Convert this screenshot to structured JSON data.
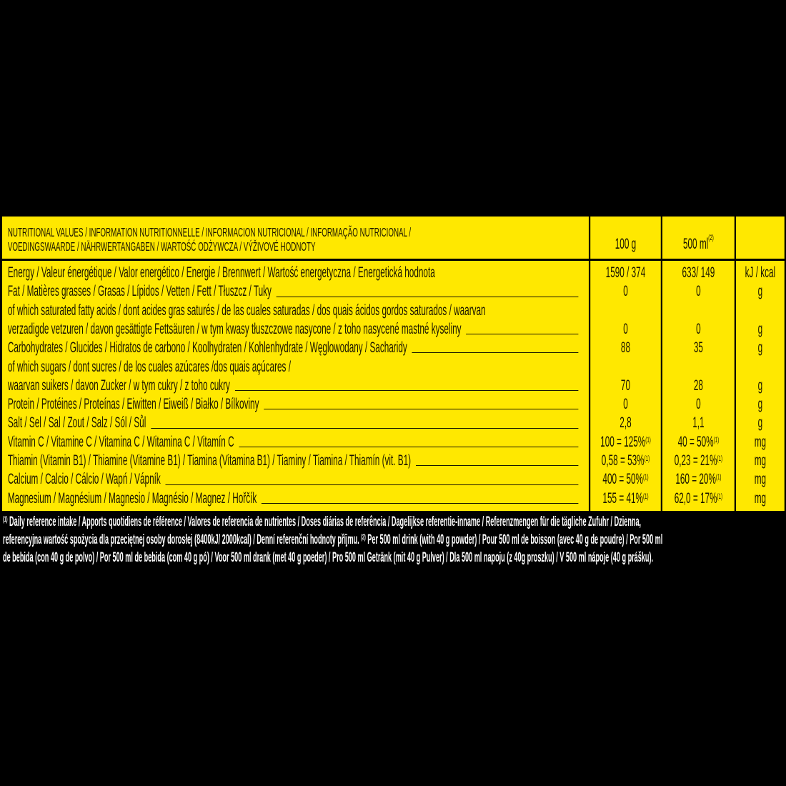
{
  "header": {
    "title_line1": "NUTRITIONAL VALUES / INFORMATION NUTRITIONNELLE / INFORMACION NUTRICIONAL / INFORMAÇÃO NUTRICIONAL /",
    "title_line2": "VOEDINGSWAARDE / NÄHRWERTANGABEN / WARTOŚĆ ODŻYWCZA / VÝŽIVOVÉ HODNOTY",
    "col_100g": "100 g",
    "col_500ml": "500 ml",
    "col_500ml_note": "(2)"
  },
  "rows": [
    {
      "label": "Energy / Valeur énergétique / Valor energético / Energie / Brennwert / Wartość energetyczna / Energetická hodnota",
      "leader": false,
      "v100": "1590 / 374",
      "v100_note": "",
      "v500": "633/ 149",
      "v500_note": "",
      "unit": "kJ / kcal"
    },
    {
      "label": "Fat / Matières grasses / Grasas / Lípidos / Vetten / Fett / Tłuszcz / Tuky",
      "leader": true,
      "v100": "0",
      "v100_note": "",
      "v500": "0",
      "v500_note": "",
      "unit": "g"
    },
    {
      "label": "of which saturated fatty acids / dont acides gras saturés / de las cuales saturadas / dos quais ácidos gordos saturados / waarvan",
      "leader": false,
      "v100": "",
      "v100_note": "",
      "v500": "",
      "v500_note": "",
      "unit": ""
    },
    {
      "label": "verzadigde vetzuren / davon gesättigte Fettsäuren / w tym kwasy tłuszczowe nasycone / z toho nasycené mastné kyseliny",
      "leader": true,
      "v100": "0",
      "v100_note": "",
      "v500": "0",
      "v500_note": "",
      "unit": "g"
    },
    {
      "label": "Carbohydrates / Glucides / Hidratos de carbono / Koolhydraten / Kohlenhydrate / Węglowodany / Sacharidy",
      "leader": true,
      "v100": "88",
      "v100_note": "",
      "v500": "35",
      "v500_note": "",
      "unit": "g"
    },
    {
      "label": "of which sugars / dont sucres / de los cuales azúcares /dos quais açúcares /",
      "leader": false,
      "v100": "",
      "v100_note": "",
      "v500": "",
      "v500_note": "",
      "unit": ""
    },
    {
      "label": "waarvan suikers / davon Zucker  / w tym cukry / z toho cukry",
      "leader": true,
      "v100": "70",
      "v100_note": "",
      "v500": "28",
      "v500_note": "",
      "unit": "g"
    },
    {
      "label": "Protein / Protéines / Proteínas / Eiwitten / Eiweiß / Białko / Bílkoviny",
      "leader": true,
      "v100": "0",
      "v100_note": "",
      "v500": "0",
      "v500_note": "",
      "unit": "g"
    },
    {
      "label": "Salt / Sel / Sal / Zout / Salz / Sól / Sůl",
      "leader": true,
      "v100": "2,8",
      "v100_note": "",
      "v500": "1,1",
      "v500_note": "",
      "unit": "g"
    },
    {
      "label": "Vitamin C / Vitamine C / Vitamina C / Witamina C / Vitamín C",
      "leader": true,
      "v100": "100 = 125%",
      "v100_note": "(1)",
      "v500": "40 = 50%",
      "v500_note": "(1)",
      "unit": "mg"
    },
    {
      "label": "Thiamin (Vitamin B1) / Thiamine (Vitamine B1) / Tiamina (Vitamina B1) / Tiaminy / Tiamina / Thiamín (vit. B1)",
      "leader": true,
      "v100": "0,58 = 53%",
      "v100_note": "(1)",
      "v500": "0,23 = 21%",
      "v500_note": "(1)",
      "unit": "mg"
    },
    {
      "label": "Calcium / Calcio / Cálcio / Wapń / Vápník",
      "leader": true,
      "v100": "400 = 50%",
      "v100_note": "(1)",
      "v500": "160 = 20%",
      "v500_note": "(1)",
      "unit": "mg"
    },
    {
      "label": "Magnesium / Magnésium / Magnesio / Magnésio / Magnez / Hořčík",
      "leader": true,
      "v100": "155 = 41%",
      "v100_note": "(1)",
      "v500": "62,0 = 17%",
      "v500_note": "(1)",
      "unit": "mg"
    }
  ],
  "footnote": {
    "note1_marker": "(1)",
    "line1": "Daily reference intake / Apports quotidiens de référence / Valores de referencia de nutrientes / Doses diárias de referência / Dagelijkse referentie-inname / Referenzmengen für die tägliche Zufuhr / Dzienna,",
    "line2a": "referencyjna wartość spożycia dla przeciętnej osoby dorosłej (8400kJ/ 2000kcal)  / Denní referenční hodnoty příjmu.",
    "note2_marker": "(2)",
    "line2b": "Per 500 ml drink (with 40 g powder) / Pour 500 ml de boisson (avec 40 g de poudre) / Por 500 ml",
    "line3": "de bebida (con 40 g de polvo) / Por 500 ml de bebida (com 40 g pó) / Voor 500 ml drank (met 40 g poeder) / Pro 500 ml Getränk (mit 40 g Pulver) / Dla 500 ml napoju (z 40g proszku) / V 500 ml nápoje (40 g prášku)."
  },
  "colors": {
    "label_background": "#FFE800",
    "text": "#1a1400",
    "page_background": "#000000",
    "footnote_text": "#ffffff"
  }
}
